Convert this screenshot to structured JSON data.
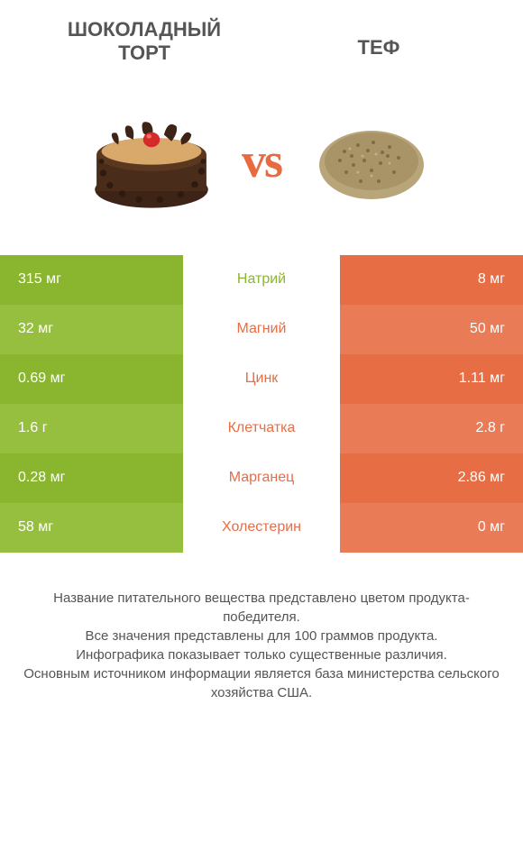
{
  "header": {
    "left_title": "ШОКОЛАДНЫЙ\nТОРТ",
    "right_title": "ТЕФ"
  },
  "vs_label": "vs",
  "colors": {
    "left_primary": "#8ab52e",
    "left_alt": "#97bf3f",
    "right_primary": "#e76d45",
    "right_alt": "#e97b56",
    "mid_bg": "#ffffff",
    "text_dark": "#555555",
    "text_white": "#ffffff",
    "nutrient_left": "#e76d45",
    "nutrient_right": "#8ab52e"
  },
  "rows": [
    {
      "left": "315 мг",
      "mid": "Натрий",
      "right": "8 мг",
      "winner": "left"
    },
    {
      "left": "32 мг",
      "mid": "Магний",
      "right": "50 мг",
      "winner": "right"
    },
    {
      "left": "0.69 мг",
      "mid": "Цинк",
      "right": "1.11 мг",
      "winner": "right"
    },
    {
      "left": "1.6 г",
      "mid": "Клетчатка",
      "right": "2.8 г",
      "winner": "right"
    },
    {
      "left": "0.28 мг",
      "mid": "Марганец",
      "right": "2.86 мг",
      "winner": "right"
    },
    {
      "left": "58 мг",
      "mid": "Холестерин",
      "right": "0 мг",
      "winner": "right"
    }
  ],
  "row_styling": {
    "left_colors": [
      "#8ab52e",
      "#97bf3f",
      "#8ab52e",
      "#97bf3f",
      "#8ab52e",
      "#97bf3f"
    ],
    "right_colors": [
      "#e76d45",
      "#e97b56",
      "#e76d45",
      "#e97b56",
      "#e76d45",
      "#e97b56"
    ]
  },
  "footer_lines": [
    "Название питательного вещества представлено цветом продукта-победителя.",
    "Все значения представлены для 100 граммов продукта.",
    "Инфографика показывает только существенные различия.",
    "Основным источником информации является база министерства сельского хозяйства США."
  ]
}
